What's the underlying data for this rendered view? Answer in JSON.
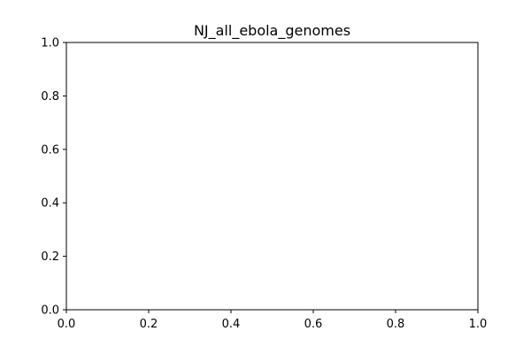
{
  "chart_data": {
    "type": "scatter",
    "title": "NJ_all_ebola_genomes",
    "xlabel": "",
    "ylabel": "",
    "xlim": [
      0.0,
      1.0
    ],
    "ylim": [
      0.0,
      1.0
    ],
    "x_ticks": [
      "0.0",
      "0.2",
      "0.4",
      "0.6",
      "0.8",
      "1.0"
    ],
    "y_ticks": [
      "0.0",
      "0.2",
      "0.4",
      "0.6",
      "0.8",
      "1.0"
    ],
    "series": [],
    "grid": false,
    "legend": "none"
  }
}
